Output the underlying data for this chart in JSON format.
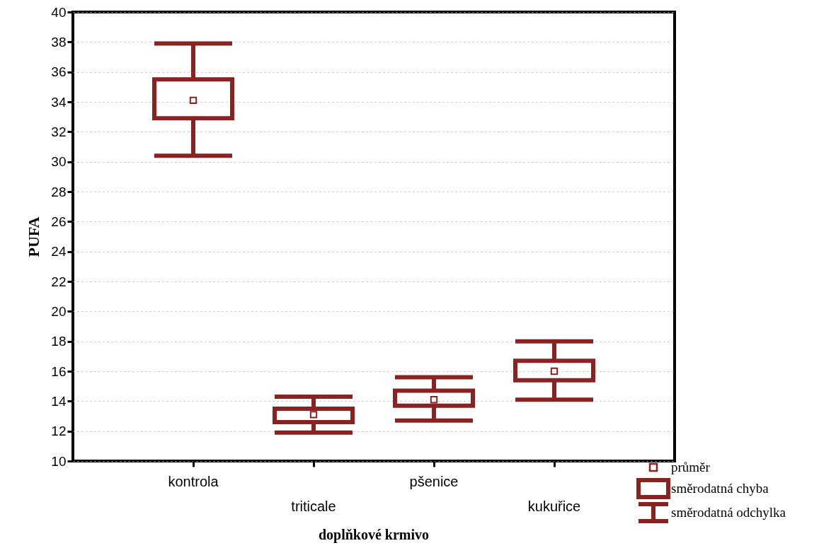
{
  "chart_data": {
    "type": "box",
    "xlabel": "doplňkové krmivo",
    "ylabel": "PUFA",
    "categories": [
      "kontrola",
      "triticale",
      "pšenice",
      "kukuřice"
    ],
    "color": "#8b2222",
    "boxes": [
      {
        "low": 30.4,
        "q1": 32.9,
        "q3": 35.5,
        "high": 37.9,
        "mean": 34.1
      },
      {
        "low": 11.9,
        "q1": 12.6,
        "q3": 13.5,
        "high": 14.3,
        "mean": 13.1
      },
      {
        "low": 12.7,
        "q1": 13.7,
        "q3": 14.7,
        "high": 15.6,
        "mean": 14.1
      },
      {
        "low": 14.1,
        "q1": 15.4,
        "q3": 16.7,
        "high": 18.0,
        "mean": 16.0
      }
    ],
    "annotations": [
      "průměr",
      "směrodatná chyba",
      "směrodatná odchylka"
    ],
    "marker": "square",
    "ylim": [
      10,
      40
    ],
    "yticks": [
      10,
      12,
      14,
      16,
      18,
      20,
      22,
      24,
      26,
      28,
      30,
      32,
      34,
      36,
      38,
      40
    ],
    "grid": "y"
  }
}
